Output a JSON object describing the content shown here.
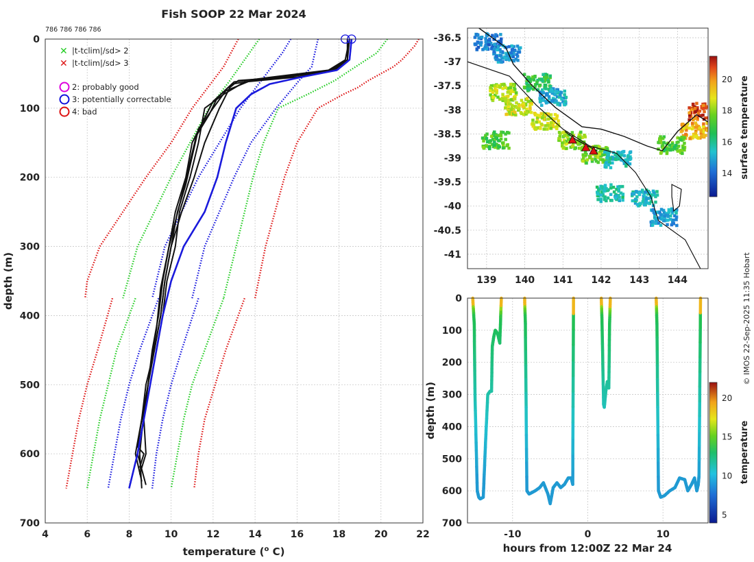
{
  "title": "Fish SOOP 22 Mar 2024",
  "profile_ids_label": "786 786 786 786",
  "credit": "© IMOS 22-Sep-2025 11:35 Hobart",
  "legend": {
    "flags": [
      {
        "label": "|t-tclim|/sd> 2",
        "color": "#22cc22"
      },
      {
        "label": "|t-tclim|/sd> 3",
        "color": "#dd1111"
      }
    ],
    "qc": [
      {
        "label": "2: probably good",
        "color": "#dd00dd"
      },
      {
        "label": "3: potentially correctable",
        "color": "#1111dd"
      },
      {
        "label": "4: bad",
        "color": "#dd1111"
      }
    ]
  },
  "chart_data": [
    {
      "id": "profile",
      "type": "line",
      "xlabel": "temperature (o C)",
      "xlabel_main": "temperature (",
      "xlabel_sup": "o",
      "xlabel_end": " C)",
      "ylabel": "depth (m)",
      "xlim": [
        4,
        22
      ],
      "ylim": [
        700,
        0
      ],
      "xticks": [
        "4",
        "6",
        "8",
        "10",
        "12",
        "14",
        "16",
        "18",
        "20",
        "22"
      ],
      "yticks": [
        "0",
        "100",
        "200",
        "300",
        "400",
        "500",
        "600",
        "700"
      ],
      "grid": true,
      "climatology": [
        {
          "name": "clim -3sd",
          "color": "#dd1111",
          "depth": [
            0,
            40,
            100,
            150,
            200,
            250,
            300,
            350,
            375
          ],
          "temp": [
            13.2,
            12.5,
            11.0,
            10.0,
            8.8,
            7.7,
            6.6,
            6.0,
            5.9
          ]
        },
        {
          "name": "clim -2sd",
          "color": "#22cc22",
          "depth": [
            0,
            30,
            60,
            100,
            150,
            200,
            300,
            375
          ],
          "temp": [
            14.2,
            13.5,
            12.8,
            11.8,
            10.9,
            10.0,
            8.4,
            7.7
          ]
        },
        {
          "name": "clim -1sd",
          "color": "#1111dd",
          "depth": [
            0,
            20,
            40,
            60,
            100,
            150,
            200,
            300,
            375
          ],
          "temp": [
            15.7,
            15.3,
            14.8,
            14.3,
            13.3,
            12.3,
            11.3,
            9.7,
            9.1
          ]
        },
        {
          "name": "clim +1sd",
          "color": "#1111dd",
          "depth": [
            0,
            40,
            60,
            100,
            150,
            200,
            300,
            375
          ],
          "temp": [
            17.0,
            16.7,
            16.1,
            15.0,
            13.8,
            13.0,
            11.6,
            11.0
          ]
        },
        {
          "name": "clim +2sd",
          "color": "#22cc22",
          "depth": [
            0,
            20,
            40,
            60,
            80,
            100,
            150,
            200,
            300,
            375
          ],
          "temp": [
            20.3,
            19.8,
            18.8,
            17.8,
            16.5,
            15.1,
            14.4,
            13.9,
            13.1,
            12.5
          ]
        },
        {
          "name": "clim +3sd",
          "color": "#dd1111",
          "depth": [
            0,
            10,
            20,
            30,
            40,
            50,
            60,
            70,
            80,
            100,
            150,
            200,
            300,
            375
          ],
          "temp": [
            21.8,
            21.6,
            21.3,
            21.0,
            20.6,
            20.0,
            19.4,
            18.9,
            18.2,
            17.0,
            16.0,
            15.4,
            14.5,
            14.0
          ]
        },
        {
          "name": "deep clim -3sd",
          "color": "#dd1111",
          "depth": [
            375,
            450,
            500,
            550,
            600,
            650
          ],
          "temp": [
            7.2,
            6.5,
            6.0,
            5.6,
            5.3,
            5.0
          ]
        },
        {
          "name": "deep clim -2sd",
          "color": "#22cc22",
          "depth": [
            375,
            450,
            500,
            550,
            600,
            650
          ],
          "temp": [
            8.3,
            7.4,
            7.0,
            6.6,
            6.3,
            6.0
          ]
        },
        {
          "name": "deep clim -1sd",
          "color": "#1111dd",
          "depth": [
            375,
            450,
            500,
            550,
            600,
            650
          ],
          "temp": [
            9.4,
            8.5,
            8.0,
            7.6,
            7.3,
            7.0
          ]
        },
        {
          "name": "deep clim +1sd",
          "color": "#1111dd",
          "depth": [
            375,
            450,
            500,
            550,
            600,
            650
          ],
          "temp": [
            11.3,
            10.5,
            10.0,
            9.6,
            9.3,
            9.1
          ]
        },
        {
          "name": "deep clim +2sd",
          "color": "#22cc22",
          "depth": [
            375,
            450,
            500,
            550,
            600,
            650
          ],
          "temp": [
            12.5,
            11.6,
            11.0,
            10.6,
            10.3,
            10.0
          ]
        },
        {
          "name": "deep clim +3sd",
          "color": "#dd1111",
          "depth": [
            375,
            450,
            500,
            550,
            600,
            650
          ],
          "temp": [
            13.5,
            12.6,
            12.1,
            11.6,
            11.3,
            11.1
          ]
        }
      ],
      "profiles": [
        {
          "name": "profile 1",
          "color": "#111111",
          "depth": [
            0,
            30,
            45,
            55,
            60,
            70,
            100,
            150,
            200,
            250,
            300,
            350,
            400,
            450,
            500,
            550,
            590,
            600,
            620
          ],
          "temp": [
            18.5,
            18.4,
            17.8,
            15.5,
            13.2,
            12.8,
            12.3,
            11.6,
            11.1,
            10.5,
            10.0,
            9.7,
            9.5,
            9.2,
            8.8,
            8.6,
            8.4,
            8.7,
            8.5
          ]
        },
        {
          "name": "profile 2",
          "color": "#111111",
          "depth": [
            0,
            30,
            45,
            55,
            62,
            80,
            100,
            150,
            200,
            250,
            300,
            350,
            400,
            450,
            500,
            550,
            600,
            630
          ],
          "temp": [
            18.6,
            18.5,
            17.9,
            16.0,
            13.5,
            12.5,
            11.6,
            11.3,
            10.9,
            10.4,
            10.2,
            9.8,
            9.6,
            9.3,
            9.0,
            8.7,
            8.8,
            8.5
          ]
        },
        {
          "name": "profile 3",
          "color": "#111111",
          "depth": [
            0,
            30,
            45,
            55,
            65,
            90,
            120,
            150,
            200,
            250,
            300,
            350,
            400,
            450,
            500,
            550,
            600,
            640
          ],
          "temp": [
            18.4,
            18.4,
            17.6,
            15.0,
            12.9,
            12.0,
            11.5,
            11.0,
            10.7,
            10.2,
            9.9,
            9.6,
            9.4,
            9.1,
            8.9,
            8.6,
            8.3,
            8.6
          ]
        },
        {
          "name": "profile 4",
          "color": "#111111",
          "depth": [
            0,
            30,
            45,
            55,
            60,
            75,
            100,
            130,
            170,
            210,
            250,
            300,
            350,
            400,
            450,
            500,
            550,
            600,
            645
          ],
          "temp": [
            18.6,
            18.5,
            17.7,
            15.3,
            13.8,
            12.6,
            12.0,
            11.3,
            11.0,
            10.7,
            10.3,
            10.0,
            9.7,
            9.5,
            9.2,
            8.9,
            8.7,
            8.4,
            8.8
          ]
        },
        {
          "name": "profile 5",
          "color": "#111111",
          "depth": [
            0,
            30,
            45,
            55,
            62,
            85,
            110,
            140,
            190,
            240,
            300,
            360,
            420,
            480,
            540,
            600,
            650
          ],
          "temp": [
            18.5,
            18.3,
            17.5,
            14.8,
            13.0,
            12.2,
            11.8,
            11.2,
            10.8,
            10.4,
            9.9,
            9.5,
            9.3,
            9.0,
            8.7,
            8.5,
            8.6
          ]
        },
        {
          "name": "qc3 profile a",
          "color": "#1a1adc",
          "depth": [
            0,
            30,
            45,
            55,
            65,
            80,
            100,
            150,
            200,
            250,
            300,
            350,
            400,
            450,
            500,
            550,
            600,
            650
          ],
          "temp": [
            18.6,
            18.5,
            17.9,
            16.2,
            14.7,
            13.8,
            13.1,
            12.6,
            12.2,
            11.6,
            10.6,
            10.0,
            9.6,
            9.3,
            9.0,
            8.7,
            8.4,
            8.0
          ]
        }
      ],
      "qc_markers": [
        {
          "temp": 18.3,
          "depth": 0
        },
        {
          "temp": 18.6,
          "depth": 0
        }
      ]
    },
    {
      "id": "map",
      "type": "heatmap",
      "xlim": [
        138.5,
        144.8
      ],
      "ylim": [
        -41.3,
        -36.3
      ],
      "xticks": [
        "139",
        "140",
        "141",
        "142",
        "143",
        "144"
      ],
      "yticks": [
        "-36.5",
        "-37",
        "-37.5",
        "-38",
        "-38.5",
        "-39",
        "-39.5",
        "-40",
        "-40.5",
        "-41"
      ],
      "colorbar_label": "surface temperature",
      "colorbar_ticks": [
        "14",
        "16",
        "18",
        "20"
      ],
      "colorbar_range": [
        12.5,
        21.5
      ],
      "sst_patches": [
        {
          "lon": 139.0,
          "lat": -36.55,
          "value": 14.5
        },
        {
          "lon": 139.5,
          "lat": -36.8,
          "value": 15.0
        },
        {
          "lon": 140.3,
          "lat": -37.4,
          "value": 17.0
        },
        {
          "lon": 140.7,
          "lat": -37.7,
          "value": 15.3
        },
        {
          "lon": 139.4,
          "lat": -37.6,
          "value": 18.5
        },
        {
          "lon": 139.8,
          "lat": -37.9,
          "value": 18.8
        },
        {
          "lon": 139.2,
          "lat": -38.6,
          "value": 17.5
        },
        {
          "lon": 140.5,
          "lat": -38.2,
          "value": 18.7
        },
        {
          "lon": 141.2,
          "lat": -38.6,
          "value": 18.2
        },
        {
          "lon": 141.8,
          "lat": -38.9,
          "value": 18.0
        },
        {
          "lon": 142.4,
          "lat": -39.0,
          "value": 15.8
        },
        {
          "lon": 142.2,
          "lat": -39.7,
          "value": 16.0
        },
        {
          "lon": 143.1,
          "lat": -39.8,
          "value": 15.6
        },
        {
          "lon": 143.6,
          "lat": -40.2,
          "value": 15.2
        },
        {
          "lon": 144.6,
          "lat": -38.0,
          "value": 20.8
        },
        {
          "lon": 144.4,
          "lat": -38.4,
          "value": 19.7
        },
        {
          "lon": 143.8,
          "lat": -38.7,
          "value": 17.5
        }
      ],
      "coast": [
        [
          138.8,
          -36.3
        ],
        [
          139.5,
          -36.7
        ],
        [
          139.7,
          -37.05
        ],
        [
          140.2,
          -37.5
        ],
        [
          140.8,
          -37.95
        ],
        [
          141.5,
          -38.35
        ],
        [
          142.0,
          -38.4
        ],
        [
          142.6,
          -38.55
        ],
        [
          143.2,
          -38.75
        ],
        [
          143.6,
          -38.85
        ],
        [
          144.0,
          -38.45
        ],
        [
          144.5,
          -38.1
        ],
        [
          144.8,
          -38.25
        ]
      ],
      "shelf": [
        [
          138.5,
          -37.0
        ],
        [
          139.6,
          -37.3
        ],
        [
          140.3,
          -37.9
        ],
        [
          141.0,
          -38.4
        ],
        [
          141.7,
          -38.75
        ],
        [
          142.4,
          -38.9
        ],
        [
          142.9,
          -39.3
        ],
        [
          143.3,
          -39.8
        ],
        [
          143.5,
          -40.3
        ],
        [
          144.2,
          -40.7
        ],
        [
          144.6,
          -41.3
        ]
      ],
      "track": [
        [
          141.05,
          -38.45
        ],
        [
          141.35,
          -38.62
        ],
        [
          141.65,
          -38.75
        ],
        [
          141.9,
          -38.85
        ]
      ],
      "stations": [
        [
          141.25,
          -38.62
        ],
        [
          141.6,
          -38.78
        ],
        [
          141.8,
          -38.85
        ]
      ],
      "island": [
        [
          143.85,
          -39.55
        ],
        [
          144.1,
          -39.65
        ],
        [
          144.05,
          -40.0
        ],
        [
          143.9,
          -40.1
        ],
        [
          143.85,
          -39.8
        ]
      ]
    },
    {
      "id": "timeseries",
      "type": "scatter",
      "xlabel": "hours from 12:00Z 22 Mar 24",
      "ylabel": "depth (m)",
      "xlim": [
        -16,
        16
      ],
      "ylim": [
        700,
        0
      ],
      "xticks": [
        "-10",
        "0",
        "10"
      ],
      "yticks": [
        "0",
        "100",
        "200",
        "300",
        "400",
        "500",
        "600",
        "700"
      ],
      "colorbar_label": "temperature",
      "colorbar_ticks": [
        "5",
        "10",
        "15",
        "20"
      ],
      "colorbar_range": [
        4,
        22
      ],
      "dives": [
        {
          "x": [
            -15.3,
            -15.1,
            -15.0,
            -14.7,
            -14.5,
            -14.3,
            -13.9,
            -13.6,
            -13.3,
            -13.0,
            -12.8,
            -12.7,
            -12.5,
            -12.3,
            -12.0,
            -11.7,
            -11.5
          ],
          "depth": [
            0,
            80,
            300,
            600,
            620,
            625,
            620,
            450,
            300,
            290,
            290,
            150,
            120,
            100,
            110,
            140,
            0
          ]
        },
        {
          "x": [
            -8.4,
            -8.3,
            -8.1,
            -7.8,
            -7.4,
            -7.0,
            -6.4,
            -5.9,
            -5.3,
            -5.0,
            -4.6,
            -4.1,
            -3.6,
            -3.1,
            -2.6,
            -2.2,
            -2.0,
            -1.9
          ],
          "depth": [
            0,
            80,
            600,
            610,
            605,
            600,
            590,
            575,
            610,
            640,
            590,
            575,
            590,
            580,
            560,
            560,
            580,
            0
          ]
        },
        {
          "x": [
            1.8,
            1.9,
            2.1,
            2.2,
            2.4,
            2.6,
            2.8,
            2.9,
            3.0
          ],
          "depth": [
            0,
            80,
            330,
            340,
            290,
            260,
            280,
            80,
            0
          ]
        },
        {
          "x": [
            9.1,
            9.2,
            9.4,
            9.7,
            10.2,
            10.9,
            11.6,
            12.2,
            12.9,
            13.3,
            13.8,
            14.2,
            14.5,
            14.7,
            14.8,
            15.0
          ],
          "depth": [
            0,
            80,
            600,
            620,
            615,
            600,
            590,
            560,
            565,
            600,
            580,
            560,
            600,
            580,
            550,
            0
          ]
        }
      ]
    }
  ]
}
